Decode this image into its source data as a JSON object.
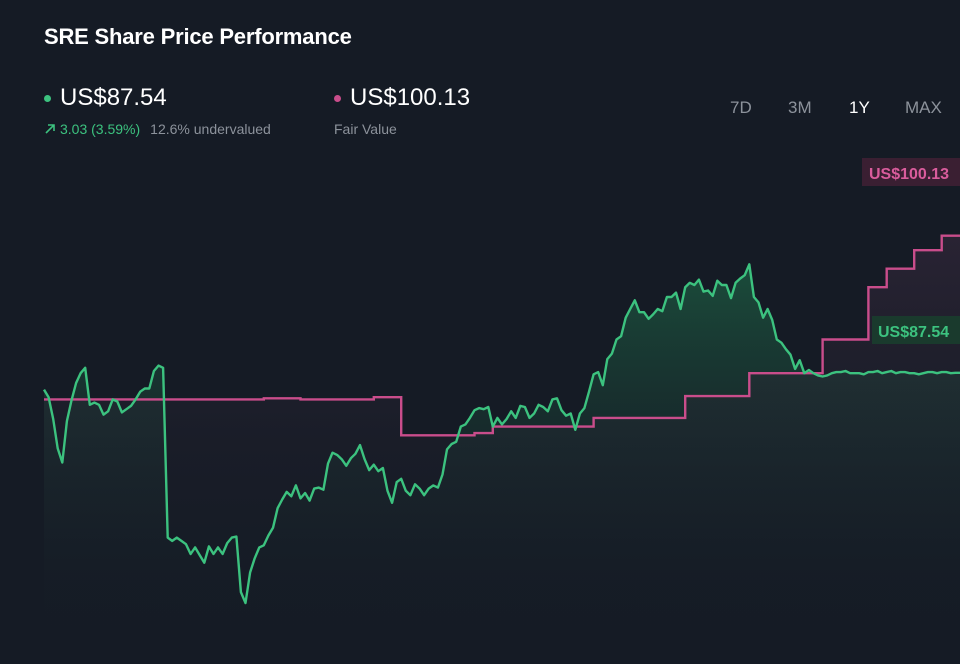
{
  "title": "SRE Share Price Performance",
  "price": {
    "value": "US$87.54",
    "change": "3.03 (3.59%)",
    "valuation": "12.6% undervalued",
    "color": "#3cc27f"
  },
  "fair_value": {
    "value": "US$100.13",
    "label": "Fair Value",
    "color": "#c94d8b"
  },
  "ranges": [
    "7D",
    "3M",
    "1Y",
    "MAX"
  ],
  "active_range": "1Y",
  "tags": {
    "fair_value": "US$100.13",
    "price": "US$87.54"
  },
  "chart_data": {
    "type": "line",
    "x_range": [
      0,
      100
    ],
    "ylim": [
      63,
      108
    ],
    "series": [
      {
        "name": "Share price",
        "color": "#3cc27f",
        "x": [
          0,
          0.5,
          1,
          1.5,
          2,
          2.5,
          3,
          3.5,
          4,
          4.5,
          5,
          5.5,
          6,
          6.5,
          7,
          7.5,
          8,
          8.5,
          9,
          9.5,
          10,
          10.5,
          11,
          11.5,
          12,
          12.5,
          13,
          13.5,
          14,
          14.5,
          15,
          15.5,
          16,
          16.5,
          17,
          17.5,
          18,
          18.5,
          19,
          19.5,
          20,
          20.5,
          21,
          21.5,
          22,
          22.5,
          23,
          23.5,
          24,
          24.5,
          25,
          25.5,
          26,
          26.5,
          27,
          27.5,
          28,
          28.5,
          29,
          29.5,
          30,
          30.5,
          31,
          31.5,
          32,
          32.5,
          33,
          33.5,
          34,
          34.5,
          35,
          35.5,
          36,
          36.5,
          37,
          37.5,
          38,
          38.5,
          39,
          39.5,
          40,
          40.5,
          41,
          41.5,
          42,
          42.5,
          43,
          43.5,
          44,
          44.5,
          45,
          45.5,
          46,
          46.5,
          47,
          47.5,
          48,
          48.5,
          49,
          49.5,
          50,
          50.5,
          51,
          51.5,
          52,
          52.5,
          53,
          53.5,
          54,
          54.5,
          55,
          55.5,
          56,
          56.5,
          57,
          57.5,
          58,
          58.5,
          59,
          59.5,
          60,
          60.5,
          61,
          61.5,
          62,
          62.5,
          63,
          63.5,
          64,
          64.5,
          65,
          65.5,
          66,
          66.5,
          67,
          67.5,
          68,
          68.5,
          69,
          69.5,
          70,
          70.5,
          71,
          71.5,
          72,
          72.5,
          73,
          73.5,
          74,
          74.5,
          75,
          75.5,
          76,
          76.5,
          77,
          77.5,
          78,
          78.5,
          79,
          79.5,
          80,
          80.5,
          81,
          81.5,
          82,
          82.5,
          83,
          83.5,
          84,
          84.5,
          85,
          85.5,
          86,
          86.5,
          87,
          87.5,
          88,
          88.5,
          89,
          89.5,
          90,
          90.5,
          91,
          91.5,
          92,
          92.5,
          93,
          93.5,
          94,
          94.5,
          95,
          95.5,
          96,
          96.5,
          97,
          97.5,
          98,
          98.5,
          99,
          99.5,
          100
        ],
        "y": [
          86.0,
          85.3,
          83.3,
          80.6,
          79.3,
          83.1,
          85.0,
          86.6,
          87.5,
          88.0,
          84.6,
          84.8,
          84.6,
          83.7,
          84.0,
          85.1,
          84.9,
          83.9,
          84.2,
          84.5,
          85.1,
          85.8,
          86.1,
          86.1,
          87.7,
          88.2,
          88.0,
          72.4,
          72.1,
          72.4,
          72.1,
          71.8,
          70.9,
          71.5,
          70.8,
          70.1,
          71.6,
          70.9,
          71.5,
          70.9,
          71.9,
          72.4,
          72.5,
          67.4,
          66.4,
          69.2,
          70.5,
          71.5,
          71.7,
          72.6,
          73.3,
          75.1,
          75.9,
          76.6,
          76.2,
          77.2,
          76.0,
          76.5,
          75.8,
          76.9,
          77.0,
          76.8,
          79.2,
          80.2,
          80.0,
          79.6,
          79.0,
          79.7,
          80.1,
          80.9,
          79.6,
          78.6,
          79.1,
          78.5,
          78.8,
          76.7,
          75.6,
          77.5,
          77.8,
          76.7,
          76.3,
          77.3,
          76.9,
          76.3,
          76.9,
          77.2,
          77.0,
          78.2,
          80.5,
          81.0,
          81.2,
          82.6,
          82.8,
          83.4,
          84.1,
          84.3,
          84.2,
          84.4,
          82.6,
          83.4,
          82.8,
          83.3,
          84.0,
          83.4,
          84.5,
          84.4,
          83.4,
          83.8,
          84.6,
          84.4,
          84.0,
          85.1,
          85.2,
          84.1,
          83.6,
          83.8,
          82.3,
          83.8,
          84.3,
          85.8,
          87.4,
          87.6,
          86.4,
          88.8,
          89.3,
          90.6,
          90.9,
          92.6,
          93.4,
          94.2,
          93.1,
          93.1,
          92.5,
          92.9,
          93.4,
          93.2,
          94.5,
          94.5,
          94.9,
          93.4,
          95.4,
          95.8,
          95.6,
          96.1,
          95.0,
          95.1,
          94.6,
          96.0,
          95.6,
          95.6,
          94.4,
          95.8,
          96.2,
          96.5,
          97.5,
          94.5,
          94.0,
          92.6,
          93.4,
          92.4,
          90.6,
          90.3,
          89.7,
          89.2,
          87.9,
          88.7,
          87.5,
          87.8,
          87.5,
          87.3,
          87.2,
          87.3,
          87.5,
          87.6,
          87.6,
          87.7,
          87.5,
          87.5,
          87.5,
          87.4,
          87.6,
          87.6,
          87.7,
          87.5,
          87.6,
          87.7,
          87.5,
          87.6,
          87.6,
          87.5,
          87.5,
          87.4,
          87.5,
          87.6,
          87.6,
          87.5,
          87.6,
          87.6,
          87.5,
          87.54,
          87.54
        ]
      },
      {
        "name": "Fair Value",
        "color": "#c94d8b",
        "x": [
          0,
          24,
          24,
          28,
          28,
          36,
          36,
          39,
          39,
          47,
          47,
          49,
          49,
          60,
          60,
          70,
          70,
          77,
          77,
          85,
          85,
          90,
          90,
          92,
          92,
          95,
          95,
          98,
          98,
          100
        ],
        "y": [
          85.1,
          85.1,
          85.2,
          85.2,
          85.1,
          85.1,
          85.3,
          85.3,
          81.8,
          81.8,
          82.0,
          82.0,
          82.6,
          82.6,
          83.4,
          83.4,
          85.4,
          85.4,
          87.5,
          87.5,
          90.6,
          90.6,
          95.4,
          95.4,
          97.1,
          97.1,
          98.8,
          98.8,
          100.13,
          100.13
        ]
      }
    ]
  }
}
